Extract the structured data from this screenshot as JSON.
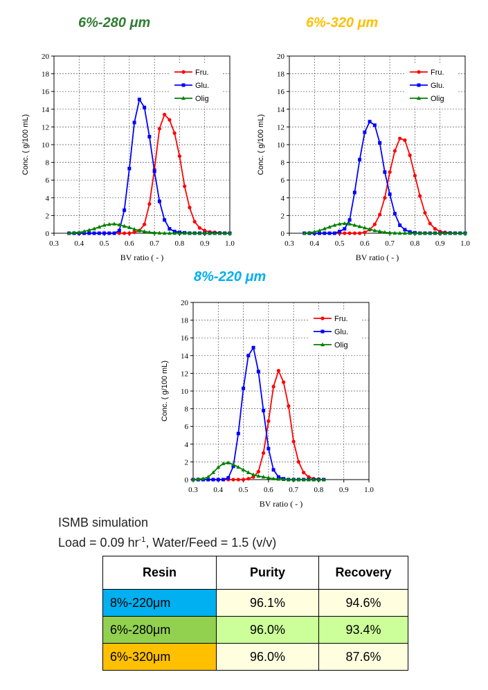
{
  "colors": {
    "fru": "#ff0000",
    "glu": "#0000ff",
    "olig": "#008000",
    "title_6_280": "#2e7d32",
    "title_6_320": "#ffc000",
    "title_8_220": "#00b0f0"
  },
  "chart_data": [
    {
      "type": "line",
      "title": "6%-280 μm",
      "xlabel": "BV ratio ( - )",
      "ylabel": "Conc. ( g/100 mL)",
      "xlim": [
        0.3,
        1.0
      ],
      "ylim": [
        0,
        20
      ],
      "xticks": [
        "0.3",
        "0.4",
        "0.5",
        "0.6",
        "0.7",
        "0.8",
        "0.9",
        "1.0"
      ],
      "yticks": [
        "0",
        "2",
        "4",
        "6",
        "8",
        "10",
        "12",
        "14",
        "16",
        "18",
        "20"
      ],
      "grid": true,
      "legend": "top-right",
      "series": [
        {
          "name": "Fru.",
          "marker": "circle",
          "color": "#ff0000",
          "x": [
            0.36,
            0.38,
            0.4,
            0.42,
            0.44,
            0.46,
            0.48,
            0.5,
            0.52,
            0.54,
            0.56,
            0.58,
            0.6,
            0.62,
            0.64,
            0.66,
            0.68,
            0.7,
            0.72,
            0.74,
            0.76,
            0.78,
            0.8,
            0.82,
            0.84,
            0.86,
            0.88,
            0.9,
            0.92,
            0.94,
            0.96,
            0.98,
            1.0
          ],
          "y": [
            0,
            0,
            0,
            0,
            0,
            0,
            0,
            0,
            0,
            0,
            0,
            0,
            0,
            0.1,
            0.3,
            1.0,
            3.3,
            7.2,
            11.8,
            13.4,
            12.8,
            11.3,
            8.7,
            5.3,
            2.9,
            1.3,
            0.6,
            0.3,
            0.15,
            0.1,
            0.05,
            0,
            0
          ]
        },
        {
          "name": "Glu.",
          "marker": "square",
          "color": "#0000ff",
          "x": [
            0.36,
            0.38,
            0.4,
            0.42,
            0.44,
            0.46,
            0.48,
            0.5,
            0.52,
            0.54,
            0.56,
            0.58,
            0.6,
            0.62,
            0.64,
            0.66,
            0.68,
            0.7,
            0.72,
            0.74,
            0.76,
            0.78,
            0.8,
            0.82,
            0.84,
            0.86,
            0.88,
            0.9,
            0.92,
            0.94,
            0.96,
            0.98,
            1.0
          ],
          "y": [
            0,
            0,
            0,
            0,
            0,
            0,
            0,
            0,
            0,
            0,
            0.3,
            2.6,
            7.3,
            12.5,
            15.1,
            14.2,
            10.9,
            7.0,
            3.6,
            1.5,
            0.5,
            0.2,
            0.1,
            0.05,
            0,
            0,
            0,
            0,
            0,
            0,
            0,
            0,
            0
          ]
        },
        {
          "name": "Olig",
          "marker": "triangle",
          "color": "#008000",
          "x": [
            0.36,
            0.38,
            0.4,
            0.42,
            0.44,
            0.46,
            0.48,
            0.5,
            0.52,
            0.54,
            0.56,
            0.58,
            0.6,
            0.62,
            0.64,
            0.66,
            0.68,
            0.7,
            0.72,
            0.74,
            0.76,
            0.78,
            0.8,
            0.82,
            0.84,
            0.86,
            0.88,
            0.9,
            0.92,
            0.94,
            0.96,
            0.98,
            1.0
          ],
          "y": [
            0,
            0.05,
            0.1,
            0.2,
            0.35,
            0.5,
            0.7,
            0.9,
            1.0,
            1.05,
            0.95,
            0.8,
            0.65,
            0.45,
            0.3,
            0.2,
            0.1,
            0.06,
            0.03,
            0,
            0,
            0,
            0,
            0,
            0,
            0,
            0,
            0,
            0,
            0,
            0,
            0,
            0
          ]
        }
      ]
    },
    {
      "type": "line",
      "title": "6%-320 μm",
      "xlabel": "BV ratio ( - )",
      "ylabel": "Conc. ( g/100 mL)",
      "xlim": [
        0.3,
        1.0
      ],
      "ylim": [
        0,
        20
      ],
      "xticks": [
        "0.3",
        "0.4",
        "0.5",
        "0.6",
        "0.7",
        "0.8",
        "0.9",
        "1.0"
      ],
      "yticks": [
        "0",
        "2",
        "4",
        "6",
        "8",
        "10",
        "12",
        "14",
        "16",
        "18",
        "20"
      ],
      "grid": true,
      "legend": "top-right",
      "series": [
        {
          "name": "Fru.",
          "marker": "circle",
          "color": "#ff0000",
          "x": [
            0.36,
            0.38,
            0.4,
            0.42,
            0.44,
            0.46,
            0.48,
            0.5,
            0.52,
            0.54,
            0.56,
            0.58,
            0.6,
            0.62,
            0.64,
            0.66,
            0.68,
            0.7,
            0.72,
            0.74,
            0.76,
            0.78,
            0.8,
            0.82,
            0.84,
            0.86,
            0.88,
            0.9,
            0.92,
            0.94,
            0.96,
            0.98,
            1.0
          ],
          "y": [
            0,
            0,
            0,
            0,
            0,
            0,
            0,
            0,
            0,
            0,
            0,
            0,
            0.1,
            0.4,
            1.0,
            2.1,
            4.0,
            6.9,
            9.3,
            10.7,
            10.5,
            8.8,
            6.5,
            4.2,
            2.3,
            1.1,
            0.5,
            0.2,
            0.1,
            0.05,
            0,
            0,
            0
          ]
        },
        {
          "name": "Glu.",
          "marker": "square",
          "color": "#0000ff",
          "x": [
            0.36,
            0.38,
            0.4,
            0.42,
            0.44,
            0.46,
            0.48,
            0.5,
            0.52,
            0.54,
            0.56,
            0.58,
            0.6,
            0.62,
            0.64,
            0.66,
            0.68,
            0.7,
            0.72,
            0.74,
            0.76,
            0.78,
            0.8,
            0.82,
            0.84,
            0.86,
            0.88,
            0.9,
            0.92,
            0.94,
            0.96,
            0.98,
            1.0
          ],
          "y": [
            0,
            0,
            0,
            0,
            0,
            0,
            0,
            0.2,
            0.5,
            1.5,
            4.6,
            8.3,
            11.4,
            12.6,
            12.2,
            10.2,
            6.9,
            4.4,
            2.2,
            0.9,
            0.4,
            0.15,
            0.05,
            0,
            0,
            0,
            0,
            0,
            0,
            0,
            0,
            0,
            0
          ]
        },
        {
          "name": "Olig",
          "marker": "triangle",
          "color": "#008000",
          "x": [
            0.36,
            0.38,
            0.4,
            0.42,
            0.44,
            0.46,
            0.48,
            0.5,
            0.52,
            0.54,
            0.56,
            0.58,
            0.6,
            0.62,
            0.64,
            0.66,
            0.68,
            0.7,
            0.72,
            0.74,
            0.76,
            0.78,
            0.8,
            0.82,
            0.84,
            0.86,
            0.88,
            0.9,
            0.92,
            0.94,
            0.96,
            0.98,
            1.0
          ],
          "y": [
            0,
            0.05,
            0.15,
            0.3,
            0.5,
            0.7,
            0.9,
            1.05,
            1.1,
            1.05,
            0.9,
            0.75,
            0.6,
            0.45,
            0.3,
            0.2,
            0.1,
            0.05,
            0.02,
            0,
            0,
            0,
            0,
            0,
            0,
            0,
            0,
            0,
            0,
            0,
            0,
            0,
            0
          ]
        }
      ]
    },
    {
      "type": "line",
      "title": "8%-220 μm",
      "xlabel": "BV ratio ( - )",
      "ylabel": "Conc. ( g/100 mL)",
      "xlim": [
        0.3,
        1.0
      ],
      "ylim": [
        0,
        20
      ],
      "xticks": [
        "0.3",
        "0.4",
        "0.5",
        "0.6",
        "0.7",
        "0.8",
        "0.9",
        "1.0"
      ],
      "yticks": [
        "0",
        "2",
        "4",
        "6",
        "8",
        "10",
        "12",
        "14",
        "16",
        "18",
        "20"
      ],
      "grid": true,
      "legend": "top-right",
      "series": [
        {
          "name": "Fru.",
          "marker": "circle",
          "color": "#ff0000",
          "x": [
            0.3,
            0.32,
            0.34,
            0.36,
            0.38,
            0.4,
            0.42,
            0.44,
            0.46,
            0.48,
            0.5,
            0.52,
            0.54,
            0.56,
            0.58,
            0.6,
            0.62,
            0.64,
            0.66,
            0.68,
            0.7,
            0.72,
            0.74,
            0.76,
            0.78,
            0.8,
            0.82
          ],
          "y": [
            0,
            0,
            0,
            0,
            0,
            0,
            0,
            0,
            0,
            0,
            0,
            0.1,
            0.3,
            0.9,
            3.0,
            6.6,
            10.5,
            12.3,
            11.0,
            8.3,
            4.3,
            2.0,
            0.8,
            0.3,
            0.1,
            0.05,
            0
          ]
        },
        {
          "name": "Glu.",
          "marker": "square",
          "color": "#0000ff",
          "x": [
            0.3,
            0.32,
            0.34,
            0.36,
            0.38,
            0.4,
            0.42,
            0.44,
            0.46,
            0.48,
            0.5,
            0.52,
            0.54,
            0.56,
            0.58,
            0.6,
            0.62,
            0.64,
            0.66,
            0.68,
            0.7,
            0.72,
            0.74,
            0.76,
            0.78,
            0.8,
            0.82
          ],
          "y": [
            0,
            0,
            0,
            0,
            0,
            0,
            0,
            0.2,
            1.5,
            5.2,
            10.3,
            14.0,
            14.9,
            12.2,
            7.8,
            3.5,
            1.1,
            0.3,
            0.1,
            0,
            0,
            0,
            0,
            0,
            0,
            0,
            0
          ]
        },
        {
          "name": "Olig",
          "marker": "triangle",
          "color": "#008000",
          "x": [
            0.3,
            0.32,
            0.34,
            0.36,
            0.38,
            0.4,
            0.42,
            0.44,
            0.46,
            0.48,
            0.5,
            0.52,
            0.54,
            0.56,
            0.58,
            0.6,
            0.62,
            0.64,
            0.66,
            0.68,
            0.7,
            0.72,
            0.74,
            0.76,
            0.78,
            0.8,
            0.82
          ],
          "y": [
            0,
            0.05,
            0.1,
            0.3,
            0.8,
            1.4,
            1.8,
            1.9,
            1.7,
            1.4,
            1.1,
            0.8,
            0.55,
            0.4,
            0.3,
            0.2,
            0.1,
            0.05,
            0.02,
            0,
            0,
            0,
            0,
            0,
            0,
            0,
            0
          ]
        }
      ]
    }
  ],
  "notes": {
    "line1": "ISMB simulation",
    "line2_prefix": "Load = 0.09 hr",
    "line2_sup": "-1",
    "line2_suffix": ", Water/Feed = 1.5 (v/v)"
  },
  "table": {
    "headers": [
      "Resin",
      "Purity",
      "Recovery"
    ],
    "rows": [
      {
        "resin": "8%-220μm",
        "purity": "96.1%",
        "recovery": "94.6%"
      },
      {
        "resin": "6%-280μm",
        "purity": "96.0%",
        "recovery": "93.4%"
      },
      {
        "resin": "6%-320μm",
        "purity": "96.0%",
        "recovery": "87.6%"
      }
    ]
  }
}
